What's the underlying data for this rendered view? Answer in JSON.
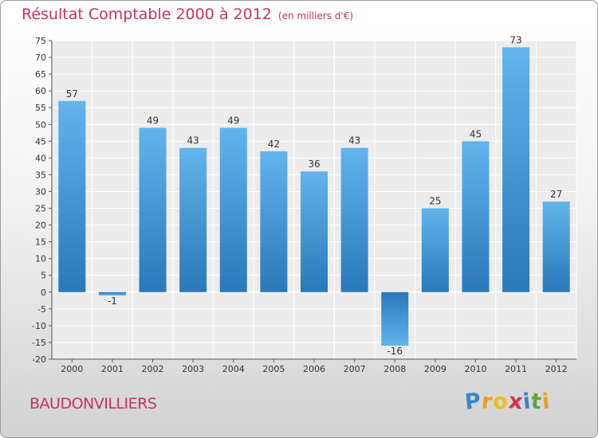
{
  "chart_data": {
    "type": "bar",
    "title": "Résultat Comptable 2000 à 2012",
    "subtitle": "(en milliers d'€)",
    "categories": [
      "2000",
      "2001",
      "2002",
      "2003",
      "2004",
      "2005",
      "2006",
      "2007",
      "2008",
      "2009",
      "2010",
      "2011",
      "2012"
    ],
    "values": [
      57,
      -1,
      49,
      43,
      49,
      42,
      36,
      43,
      -16,
      25,
      45,
      73,
      27
    ],
    "data_labels": [
      "57",
      "-1",
      "49",
      "43",
      "49",
      "42",
      "36",
      "43",
      "-16",
      "25",
      "45",
      "73",
      "27"
    ],
    "ylim": [
      -20,
      75
    ],
    "yticks": [
      75,
      70,
      65,
      60,
      55,
      50,
      45,
      40,
      35,
      30,
      25,
      20,
      15,
      10,
      5,
      0,
      -5,
      -10,
      -15,
      -20
    ],
    "xlabel": "",
    "ylabel": "",
    "grid": true,
    "legend": "none"
  },
  "commune": "BAUDONVILLIERS",
  "logo": {
    "text": "Proxiti",
    "letters": [
      "P",
      "r",
      "o",
      "x",
      "i",
      "t",
      "i"
    ],
    "colors": [
      "#3a86c8",
      "#f29a1f",
      "#e8c21a",
      "#d8334a",
      "#3a86c8",
      "#5aa83a",
      "#f29a1f"
    ]
  },
  "colors": {
    "bar_top": "#62b4ec",
    "bar_bottom": "#2a78b8",
    "title": "#c4345c"
  }
}
